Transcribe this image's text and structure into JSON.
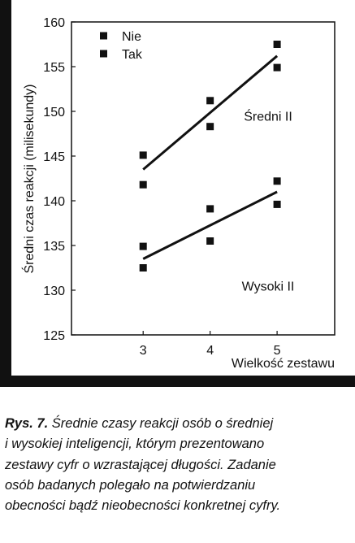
{
  "chart_data": {
    "type": "scatter",
    "x_label": "Wielkość zestawu",
    "y_label": "Średni czas reakcji (milisekundy)",
    "xlim": [
      1.93,
      5.86
    ],
    "ylim": [
      125,
      160
    ],
    "xticks": [
      3,
      4,
      5
    ],
    "yticks": [
      125,
      130,
      135,
      140,
      145,
      150,
      155,
      160
    ],
    "legend": "top-left",
    "series": [
      {
        "name": "Nie",
        "color": "#111111",
        "x": [
          3,
          4,
          5,
          3,
          4,
          5
        ],
        "values": [
          145.1,
          151.2,
          157.5,
          134.9,
          139.1,
          142.2
        ]
      },
      {
        "name": "Tak",
        "color": "#111111",
        "x": [
          3,
          4,
          5,
          3,
          4,
          5
        ],
        "values": [
          141.8,
          148.3,
          154.9,
          132.5,
          135.5,
          139.6
        ]
      }
    ],
    "trends": [
      {
        "label": "Średni II",
        "x": [
          3,
          5
        ],
        "values": [
          143.5,
          156.2
        ]
      },
      {
        "label": "Wysoki II",
        "x": [
          3,
          5
        ],
        "values": [
          133.5,
          141
        ]
      }
    ]
  },
  "caption": {
    "label": "Rys. 7.",
    "lines": [
      "Średnie czasy reakcji osób o średniej",
      "i wysokiej inteligencji, którym prezentowano",
      "zestawy cyfr o wzrastającej długości. Zadanie",
      "osób badanych polegało na potwierdzaniu",
      "obecności bądź nieobecności konkretnej cyfry."
    ]
  }
}
